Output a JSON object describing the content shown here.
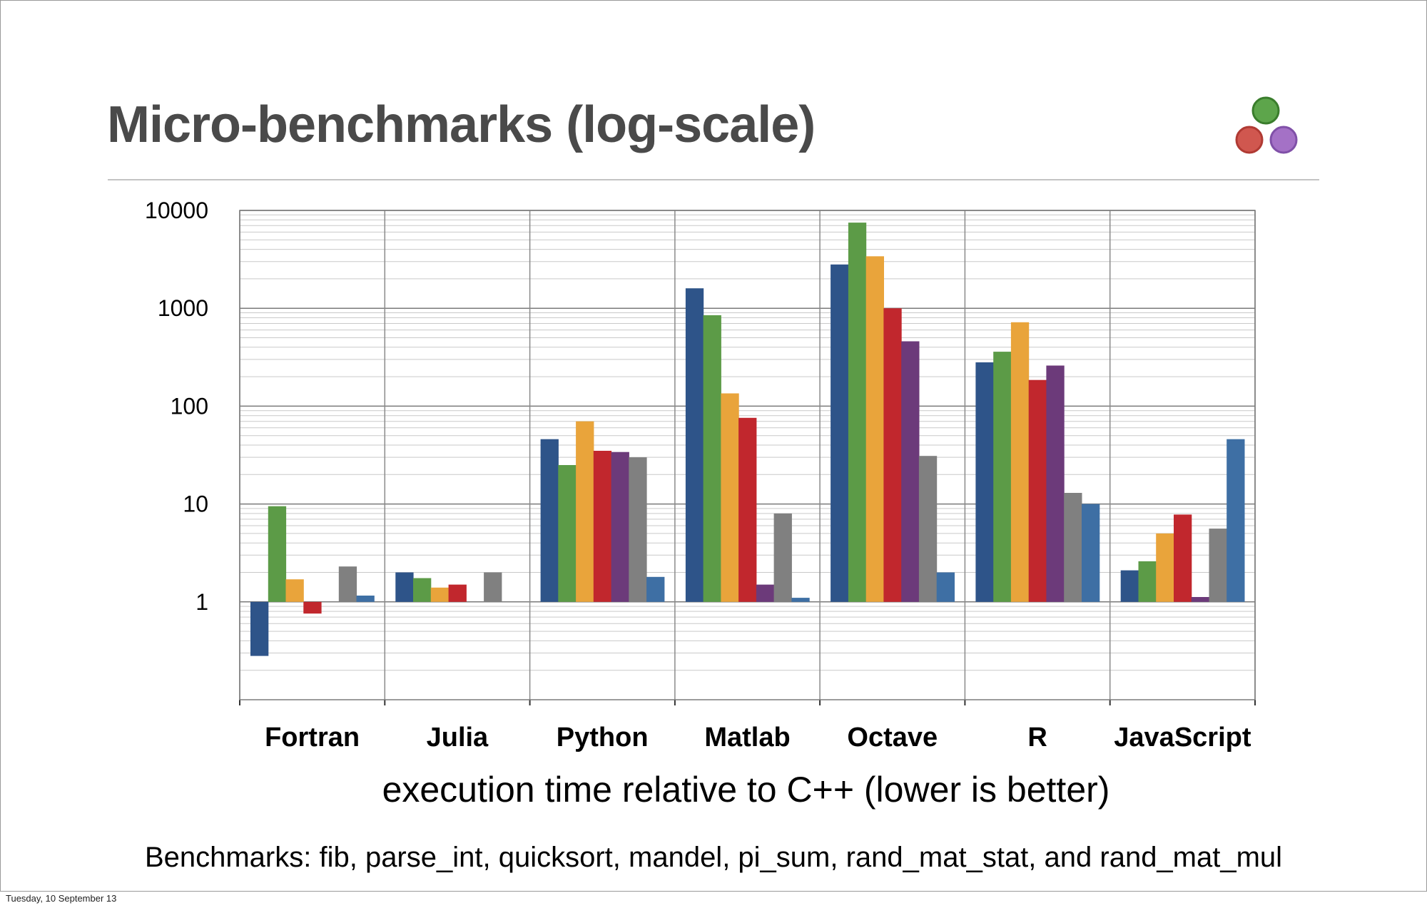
{
  "slide": {
    "title": "Micro-benchmarks (log-scale)",
    "caption": "Benchmarks: fib, parse_int, quicksort, mandel, pi_sum, rand_mat_stat, and rand_mat_mul",
    "footer_date": "Tuesday, 10 September 13",
    "logo": {
      "icon": "julia-dots-logo",
      "colors": {
        "green": "#5da54b",
        "red": "#d0574f",
        "purple": "#a471c6"
      }
    }
  },
  "chart_data": {
    "type": "bar",
    "title": "",
    "xlabel": "execution time relative to C++ (lower is better)",
    "ylabel": "",
    "y_scale": "log",
    "ylim": [
      0.1,
      10000
    ],
    "y_tick_labels": [
      "1",
      "10",
      "100",
      "1000",
      "10000"
    ],
    "y_tick_values": [
      1,
      10,
      100,
      1000,
      10000
    ],
    "grid": true,
    "legend": "none",
    "categories": [
      "Fortran",
      "Julia",
      "Python",
      "Matlab",
      "Octave",
      "R",
      "JavaScript"
    ],
    "series": [
      {
        "color": "#2e5489",
        "values": [
          0.28,
          2.0,
          46,
          1600,
          2800,
          280,
          2.1
        ]
      },
      {
        "color": "#5c9b47",
        "values": [
          9.5,
          1.75,
          25,
          850,
          7500,
          360,
          2.6
        ]
      },
      {
        "color": "#e9a43b",
        "values": [
          1.7,
          1.4,
          70,
          135,
          3400,
          720,
          5.0
        ]
      },
      {
        "color": "#c1272d",
        "values": [
          0.76,
          1.5,
          35,
          76,
          1000,
          185,
          7.8
        ]
      },
      {
        "color": "#6c3a7a",
        "values": [
          null,
          null,
          34,
          1.5,
          460,
          260,
          1.12
        ]
      },
      {
        "color": "#808080",
        "values": [
          2.3,
          2.0,
          30,
          8.0,
          31,
          13,
          5.6
        ]
      },
      {
        "color": "#3e6fa4",
        "values": [
          1.16,
          null,
          1.8,
          1.1,
          2.0,
          10,
          46
        ]
      }
    ]
  }
}
